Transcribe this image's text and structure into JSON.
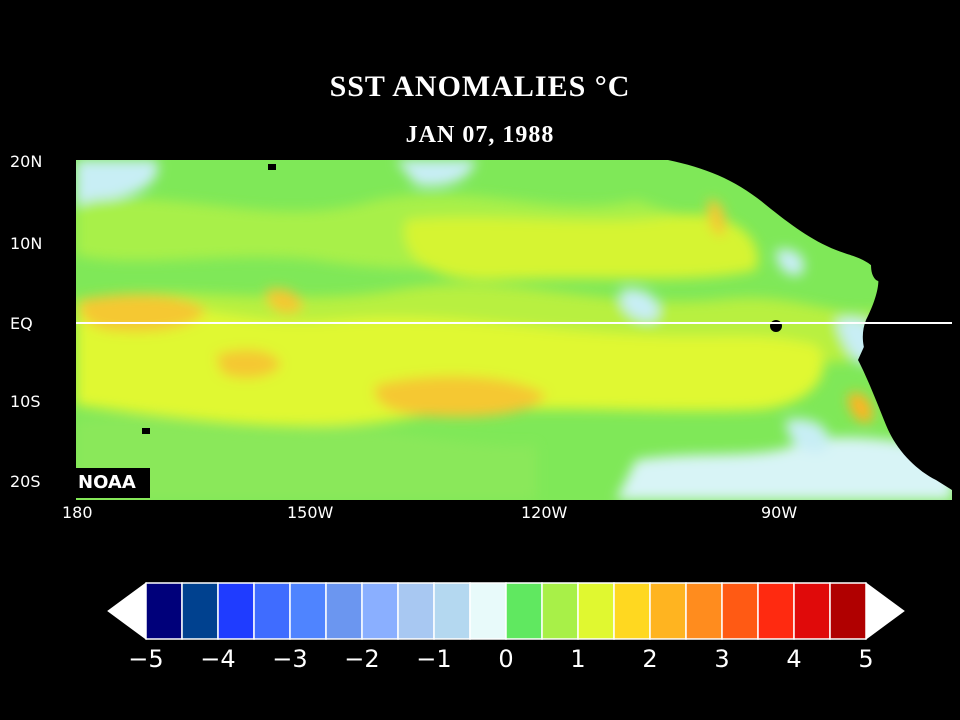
{
  "map": {
    "title": "SST ANOMALIES °C",
    "date": "JAN 07, 1988",
    "credit": "NOAA",
    "lat_labels": [
      "20N",
      "10N",
      "EQ",
      "10S",
      "20S"
    ],
    "lon_labels": [
      "180",
      "150W",
      "120W",
      "90W"
    ],
    "equator_line_color": "#ffffff",
    "land_color": "#000000"
  },
  "colorbar": {
    "colors": [
      "#00007a",
      "#00418f",
      "#1f3cff",
      "#3f6cff",
      "#4f84ff",
      "#6b96f0",
      "#8aafff",
      "#a8c8f2",
      "#b4d8f0",
      "#e8fafa",
      "#60e860",
      "#a8f048",
      "#e0f830",
      "#ffd820",
      "#ffb420",
      "#ff8c1e",
      "#ff5a14",
      "#ff2a10",
      "#e00a0a",
      "#b00000"
    ],
    "labels": [
      "−5",
      "−4",
      "−3",
      "−2",
      "−1",
      "0",
      "1",
      "2",
      "3",
      "4",
      "5"
    ],
    "range": [
      -5,
      5
    ]
  }
}
